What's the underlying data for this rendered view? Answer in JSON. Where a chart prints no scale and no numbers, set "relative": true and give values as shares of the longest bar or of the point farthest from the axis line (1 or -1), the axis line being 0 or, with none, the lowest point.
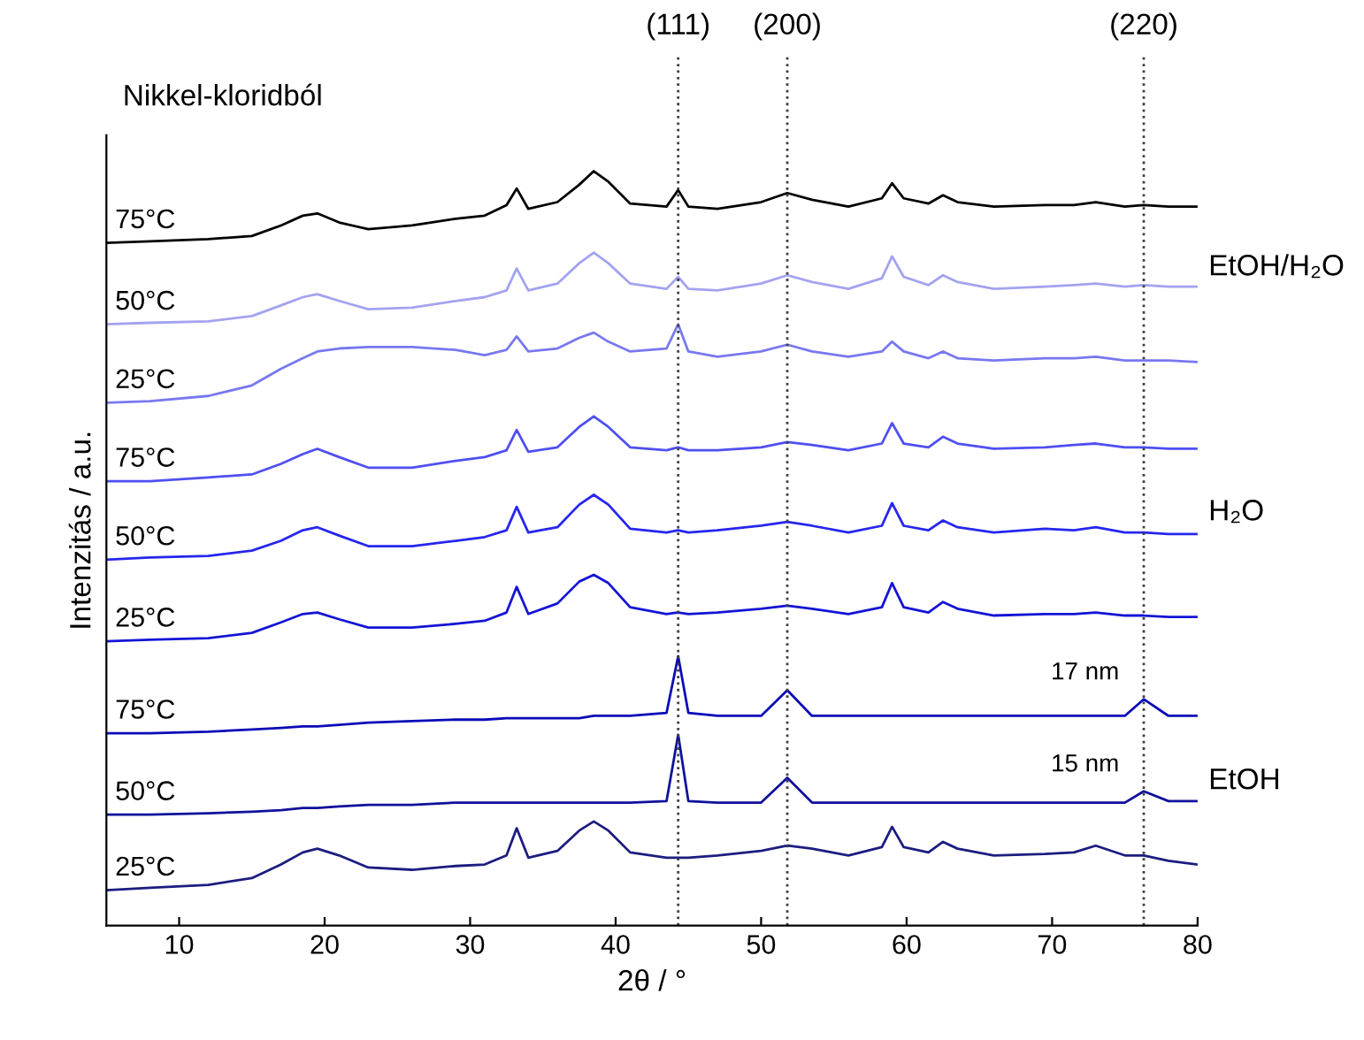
{
  "chart_data": {
    "type": "line",
    "relative": true,
    "xlabel": "2θ / °",
    "ylabel": "Intenzitás / a.u.",
    "xlim": [
      5,
      80
    ],
    "xticks": [
      10,
      20,
      30,
      40,
      50,
      60,
      70,
      80
    ],
    "grid": false,
    "legend": false,
    "marker": "none",
    "line_style": "solid",
    "x": [
      5,
      8,
      12,
      15,
      17,
      18.5,
      19.5,
      21,
      23,
      26,
      29,
      31,
      32.5,
      33.2,
      34,
      36,
      37.5,
      38.5,
      39.5,
      41,
      43.5,
      44.3,
      45,
      47,
      50,
      51.8,
      53.5,
      56,
      58.3,
      59,
      59.8,
      61.5,
      62.5,
      63.5,
      66,
      69.5,
      71.5,
      73,
      75,
      76.3,
      78,
      80
    ],
    "series": [
      {
        "name": "75°C",
        "color": "#000000",
        "values": [
          0.905,
          0.907,
          0.91,
          0.914,
          0.928,
          0.941,
          0.944,
          0.932,
          0.923,
          0.928,
          0.937,
          0.941,
          0.955,
          0.977,
          0.95,
          0.959,
          0.982,
          1,
          0.986,
          0.957,
          0.953,
          0.975,
          0.953,
          0.95,
          0.959,
          0.971,
          0.962,
          0.953,
          0.964,
          0.984,
          0.964,
          0.957,
          0.968,
          0.959,
          0.953,
          0.955,
          0.955,
          0.959,
          0.953,
          0.955,
          0.953,
          0.953
        ]
      },
      {
        "name": "50°C",
        "color": "#a3a3f0",
        "values": [
          0.797,
          0.799,
          0.801,
          0.808,
          0.822,
          0.833,
          0.837,
          0.828,
          0.817,
          0.819,
          0.828,
          0.833,
          0.842,
          0.871,
          0.842,
          0.851,
          0.878,
          0.892,
          0.878,
          0.851,
          0.844,
          0.86,
          0.844,
          0.842,
          0.851,
          0.862,
          0.853,
          0.844,
          0.858,
          0.887,
          0.86,
          0.849,
          0.862,
          0.853,
          0.844,
          0.847,
          0.849,
          0.851,
          0.847,
          0.849,
          0.847,
          0.847
        ]
      },
      {
        "name": "25°C",
        "color": "#7878f0",
        "values": [
          0.693,
          0.695,
          0.702,
          0.716,
          0.738,
          0.752,
          0.761,
          0.765,
          0.767,
          0.767,
          0.763,
          0.756,
          0.763,
          0.781,
          0.761,
          0.765,
          0.779,
          0.786,
          0.774,
          0.761,
          0.765,
          0.797,
          0.761,
          0.754,
          0.761,
          0.77,
          0.761,
          0.754,
          0.761,
          0.774,
          0.761,
          0.752,
          0.761,
          0.752,
          0.749,
          0.752,
          0.752,
          0.754,
          0.749,
          0.749,
          0.749,
          0.747
        ]
      },
      {
        "name": "75°C",
        "color": "#4f4ff2",
        "values": [
          0.589,
          0.589,
          0.594,
          0.598,
          0.612,
          0.625,
          0.632,
          0.621,
          0.607,
          0.607,
          0.616,
          0.621,
          0.63,
          0.657,
          0.628,
          0.634,
          0.661,
          0.675,
          0.661,
          0.634,
          0.63,
          0.634,
          0.63,
          0.63,
          0.634,
          0.641,
          0.637,
          0.63,
          0.639,
          0.666,
          0.639,
          0.634,
          0.648,
          0.639,
          0.632,
          0.634,
          0.637,
          0.639,
          0.634,
          0.634,
          0.632,
          0.632
        ]
      },
      {
        "name": "50°C",
        "color": "#2626ee",
        "values": [
          0.485,
          0.488,
          0.49,
          0.497,
          0.51,
          0.524,
          0.528,
          0.517,
          0.503,
          0.503,
          0.51,
          0.515,
          0.524,
          0.555,
          0.521,
          0.528,
          0.558,
          0.571,
          0.558,
          0.526,
          0.521,
          0.524,
          0.521,
          0.524,
          0.53,
          0.535,
          0.53,
          0.521,
          0.53,
          0.56,
          0.53,
          0.524,
          0.537,
          0.528,
          0.521,
          0.526,
          0.524,
          0.528,
          0.521,
          0.521,
          0.519,
          0.519
        ]
      },
      {
        "name": "25°C",
        "color": "#1414d6",
        "values": [
          0.377,
          0.379,
          0.381,
          0.388,
          0.402,
          0.413,
          0.415,
          0.406,
          0.395,
          0.395,
          0.4,
          0.404,
          0.415,
          0.449,
          0.413,
          0.427,
          0.456,
          0.465,
          0.454,
          0.422,
          0.413,
          0.415,
          0.413,
          0.415,
          0.42,
          0.424,
          0.42,
          0.413,
          0.422,
          0.454,
          0.422,
          0.415,
          0.429,
          0.42,
          0.411,
          0.413,
          0.413,
          0.415,
          0.411,
          0.411,
          0.409,
          0.409
        ]
      },
      {
        "name": "75°C",
        "color": "#0a0ab8",
        "values": [
          0.255,
          0.255,
          0.257,
          0.26,
          0.262,
          0.264,
          0.264,
          0.266,
          0.269,
          0.271,
          0.273,
          0.273,
          0.275,
          0.275,
          0.275,
          0.275,
          0.275,
          0.278,
          0.278,
          0.278,
          0.282,
          0.357,
          0.282,
          0.278,
          0.278,
          0.312,
          0.278,
          0.278,
          0.278,
          0.278,
          0.278,
          0.278,
          0.278,
          0.278,
          0.278,
          0.278,
          0.278,
          0.278,
          0.278,
          0.3,
          0.278,
          0.278
        ]
      },
      {
        "name": "50°C",
        "color": "#10109c",
        "values": [
          0.147,
          0.147,
          0.149,
          0.151,
          0.153,
          0.156,
          0.156,
          0.158,
          0.16,
          0.16,
          0.163,
          0.163,
          0.163,
          0.163,
          0.163,
          0.163,
          0.163,
          0.163,
          0.163,
          0.163,
          0.165,
          0.253,
          0.165,
          0.163,
          0.163,
          0.196,
          0.163,
          0.163,
          0.163,
          0.163,
          0.163,
          0.163,
          0.163,
          0.163,
          0.163,
          0.163,
          0.163,
          0.163,
          0.163,
          0.178,
          0.165,
          0.165
        ]
      },
      {
        "name": "25°C",
        "color": "#1c1c80",
        "values": [
          0.047,
          0.05,
          0.054,
          0.063,
          0.081,
          0.097,
          0.102,
          0.093,
          0.077,
          0.074,
          0.079,
          0.081,
          0.093,
          0.129,
          0.09,
          0.099,
          0.126,
          0.138,
          0.126,
          0.097,
          0.09,
          0.09,
          0.09,
          0.093,
          0.099,
          0.106,
          0.102,
          0.093,
          0.104,
          0.131,
          0.104,
          0.097,
          0.111,
          0.102,
          0.093,
          0.095,
          0.097,
          0.106,
          0.093,
          0.093,
          0.086,
          0.081
        ]
      }
    ],
    "ref_lines": [
      {
        "axis": "x",
        "value": 44.3,
        "color": "#404040",
        "line_style": "dotted"
      },
      {
        "axis": "x",
        "value": 51.8,
        "color": "#404040",
        "line_style": "dotted"
      },
      {
        "axis": "x",
        "value": 76.3,
        "color": "#404040",
        "line_style": "dotted"
      }
    ],
    "annotations": [
      "Nikkel-kloridból",
      "EtOH/H₂O",
      "H₂O",
      "EtOH",
      "(111)",
      "(200)",
      "(220)",
      {
        "text": "17 nm",
        "x": 76.3,
        "y": 0.3
      },
      {
        "text": "15 nm",
        "x": 76.3,
        "y": 0.178
      }
    ]
  }
}
